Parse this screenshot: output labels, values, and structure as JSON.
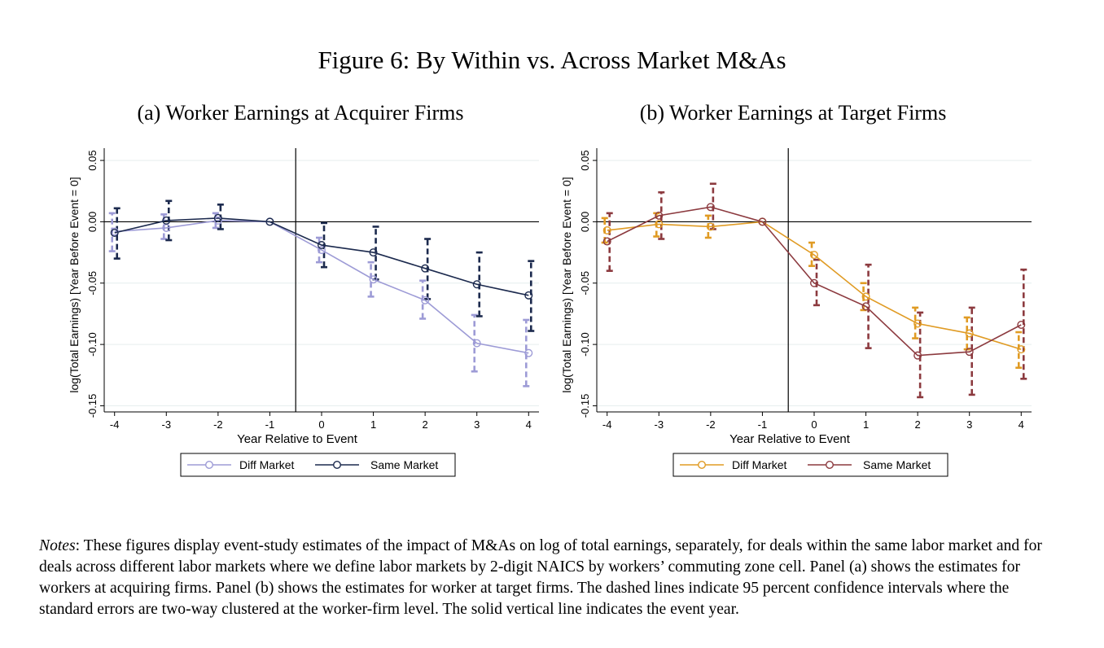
{
  "figure": {
    "title": "Figure 6: By Within vs. Across Market M&As"
  },
  "notes": {
    "label": "Notes",
    "text": ": These figures display event-study estimates of the impact of M&As on log of total earnings, separately, for deals within the same labor market and for deals across different labor markets where we define labor markets by 2-digit NAICS by workers’ commuting zone cell. Panel (a) shows the estimates for workers at acquiring firms. Panel (b) shows the estimates for worker at target firms. The dashed lines indicate 95 percent confidence intervals where the standard errors are two-way clustered at the worker-firm level. The solid vertical line indicates the event year."
  },
  "chart_data": [
    {
      "type": "line",
      "title": "(a) Worker Earnings at Acquirer Firms",
      "xlabel": "Year Relative to Event",
      "ylabel": "log(Total Earnings) [Year Before Event = 0]",
      "x": [
        -4,
        -3,
        -2,
        -1,
        0,
        1,
        2,
        3,
        4
      ],
      "xlim": [
        -4.2,
        4.2
      ],
      "ylim": [
        -0.155,
        0.06
      ],
      "yticks": [
        -0.15,
        -0.1,
        -0.05,
        0.0,
        0.05
      ],
      "ytick_labels": [
        "-0.15",
        "-0.10",
        "-0.05",
        "0.00",
        "0.05"
      ],
      "event_line_x": -0.5,
      "legend_position": "bottom",
      "series": [
        {
          "name": "Diff Market",
          "color": "#9d9bd6",
          "marker": "hollow-circle",
          "values": [
            -0.008,
            -0.005,
            0.001,
            0.0,
            -0.023,
            -0.047,
            -0.064,
            -0.099,
            -0.107
          ],
          "ci_low": [
            -0.024,
            -0.014,
            -0.005,
            0.0,
            -0.033,
            -0.061,
            -0.079,
            -0.122,
            -0.134
          ],
          "ci_high": [
            0.007,
            0.006,
            0.007,
            0.0,
            -0.013,
            -0.033,
            -0.048,
            -0.076,
            -0.08
          ]
        },
        {
          "name": "Same Market",
          "color": "#1c2a4e",
          "marker": "hollow-circle",
          "values": [
            -0.009,
            0.001,
            0.003,
            0.0,
            -0.019,
            -0.025,
            -0.038,
            -0.051,
            -0.06
          ],
          "ci_low": [
            -0.03,
            -0.015,
            -0.006,
            0.0,
            -0.037,
            -0.047,
            -0.063,
            -0.077,
            -0.089
          ],
          "ci_high": [
            0.011,
            0.017,
            0.014,
            0.0,
            -0.001,
            -0.004,
            -0.014,
            -0.025,
            -0.032
          ]
        }
      ]
    },
    {
      "type": "line",
      "title": "(b) Worker Earnings at Target Firms",
      "xlabel": "Year Relative to Event",
      "ylabel": "log(Total Earnings) [Year Before Event = 0]",
      "x": [
        -4,
        -3,
        -2,
        -1,
        0,
        1,
        2,
        3,
        4
      ],
      "xlim": [
        -4.2,
        4.2
      ],
      "ylim": [
        -0.155,
        0.06
      ],
      "yticks": [
        -0.15,
        -0.1,
        -0.05,
        0.0,
        0.05
      ],
      "ytick_labels": [
        "-0.15",
        "-0.10",
        "-0.05",
        "0.00",
        "0.05"
      ],
      "event_line_x": -0.5,
      "legend_position": "bottom",
      "series": [
        {
          "name": "Diff Market",
          "color": "#e09b24",
          "marker": "hollow-circle",
          "values": [
            -0.007,
            -0.002,
            -0.004,
            0.0,
            -0.027,
            -0.061,
            -0.083,
            -0.091,
            -0.104
          ],
          "ci_low": [
            -0.017,
            -0.012,
            -0.013,
            0.0,
            -0.036,
            -0.072,
            -0.095,
            -0.104,
            -0.119
          ],
          "ci_high": [
            0.003,
            0.007,
            0.005,
            0.0,
            -0.017,
            -0.05,
            -0.07,
            -0.078,
            -0.09
          ]
        },
        {
          "name": "Same Market",
          "color": "#8c3a3f",
          "marker": "hollow-circle",
          "values": [
            -0.016,
            0.005,
            0.012,
            0.0,
            -0.05,
            -0.069,
            -0.109,
            -0.106,
            -0.084
          ],
          "ci_low": [
            -0.04,
            -0.014,
            -0.006,
            0.0,
            -0.068,
            -0.103,
            -0.143,
            -0.141,
            -0.128
          ],
          "ci_high": [
            0.007,
            0.024,
            0.031,
            0.0,
            -0.031,
            -0.035,
            -0.074,
            -0.07,
            -0.039
          ]
        }
      ]
    }
  ]
}
